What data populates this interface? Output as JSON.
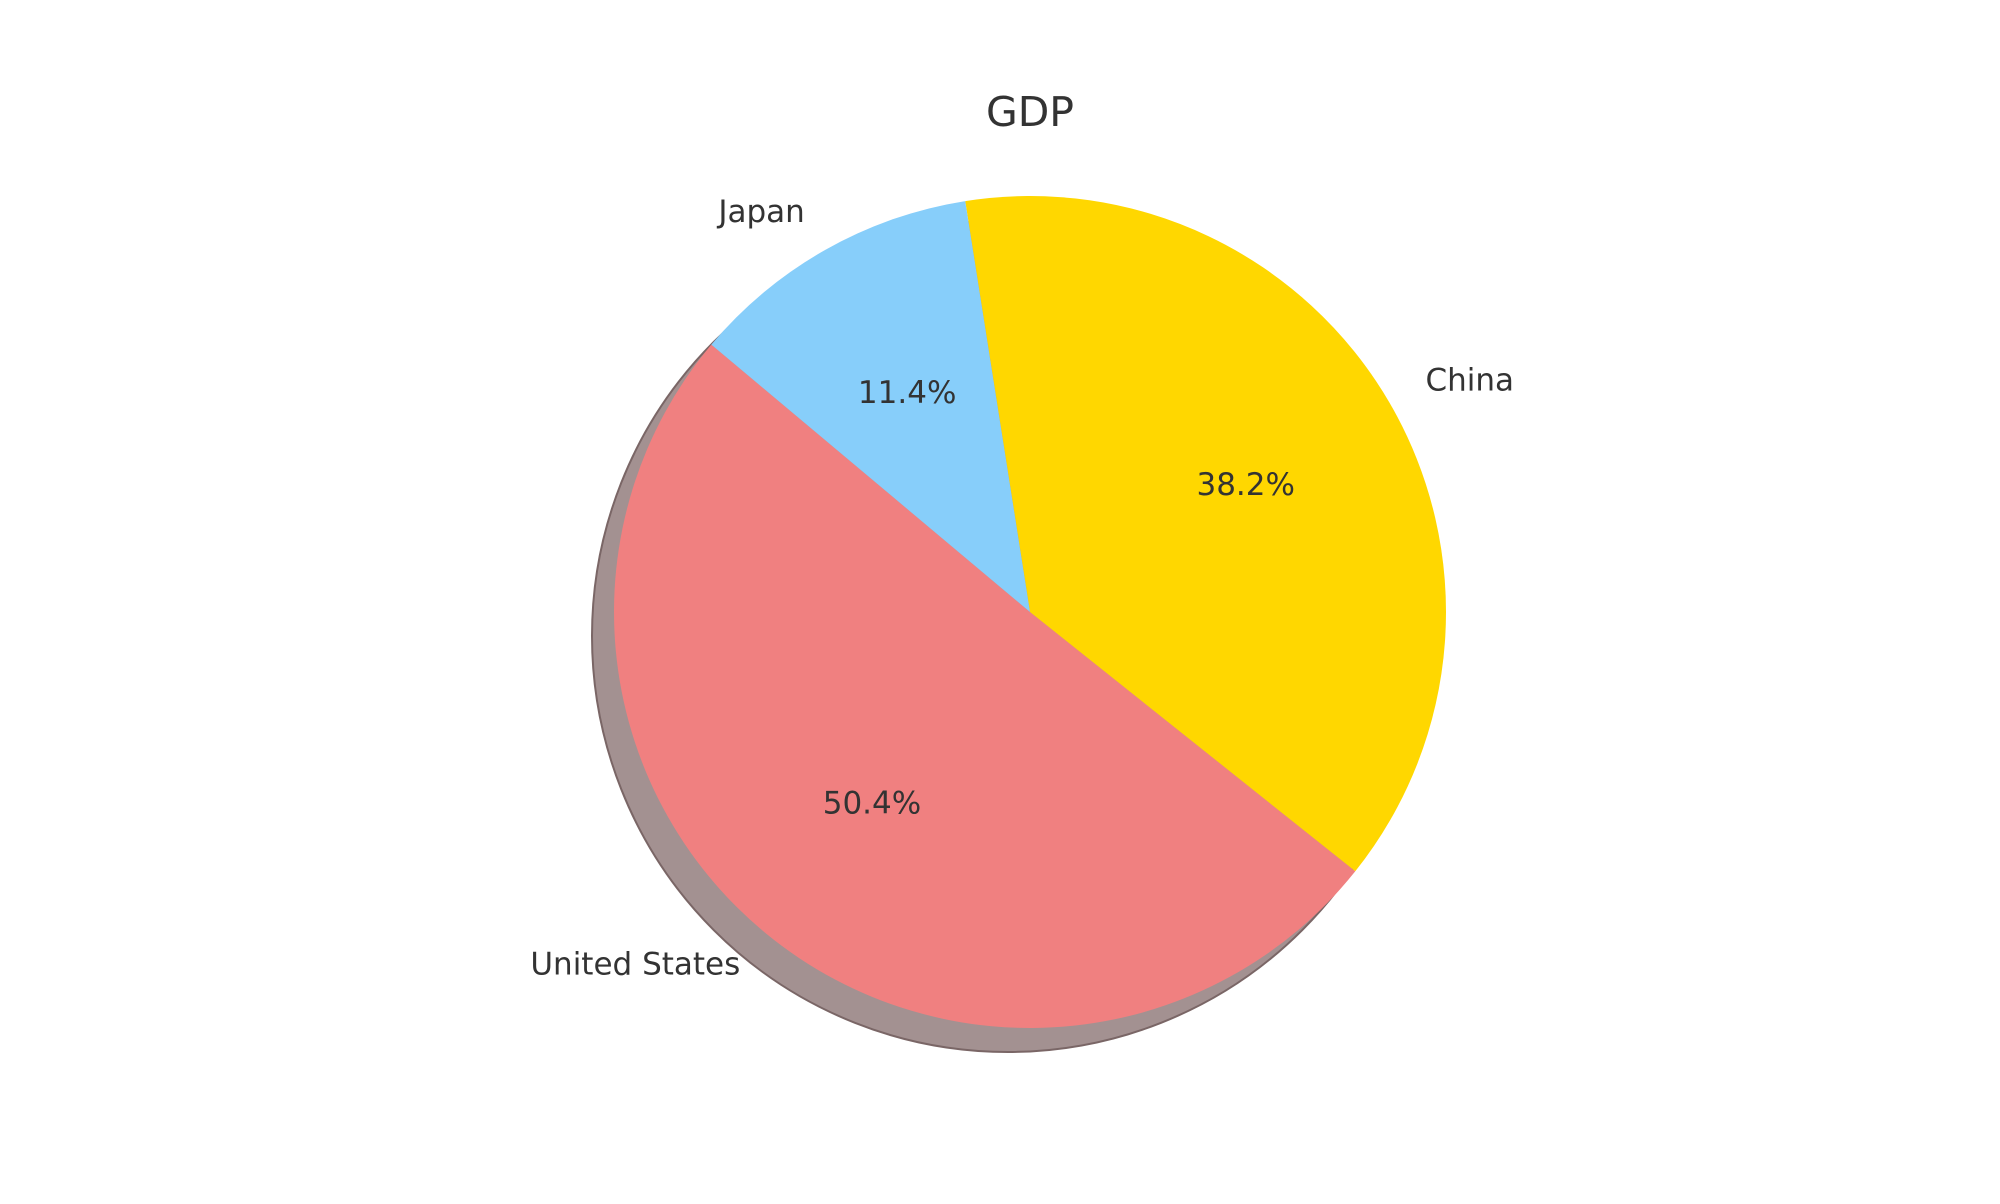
{
  "chart_data": {
    "type": "pie",
    "title": "GDP",
    "slices": [
      {
        "label": "United States",
        "value": 50.4,
        "pct_label": "50.4%",
        "color": "#F08080"
      },
      {
        "label": "China",
        "value": 38.2,
        "pct_label": "38.2%",
        "color": "#FFD700"
      },
      {
        "label": "Japan",
        "value": 11.4,
        "pct_label": "11.4%",
        "color": "#87CEFA"
      }
    ],
    "shadow": true,
    "shadow_color": "#A39191"
  }
}
